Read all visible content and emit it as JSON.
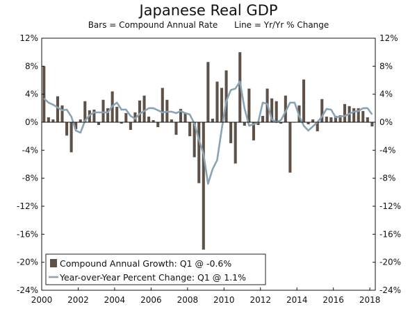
{
  "chart_data": {
    "type": "bar",
    "title": "Japanese Real GDP",
    "subtitle_left": "Bars = Compound Annual Rate",
    "subtitle_right": "Line = Yr/Yr % Change",
    "ylim": [
      -24,
      12
    ],
    "yticks": [
      "12%",
      "8%",
      "4%",
      "0%",
      "-4%",
      "-8%",
      "-12%",
      "-16%",
      "-20%",
      "-24%"
    ],
    "ytick_values": [
      12,
      8,
      4,
      0,
      -4,
      -8,
      -12,
      -16,
      -20,
      -24
    ],
    "xlim": [
      2000,
      2018.3
    ],
    "xticks": [
      "2000",
      "2002",
      "2004",
      "2006",
      "2008",
      "2010",
      "2012",
      "2014",
      "2016",
      "2018"
    ],
    "xtick_values": [
      2000,
      2002,
      2004,
      2006,
      2008,
      2010,
      2012,
      2014,
      2016,
      2018
    ],
    "colors": {
      "bars": "#5e5248",
      "line": "#8aa3b4",
      "axis": "#111111"
    },
    "series": [
      {
        "name": "Compound Annual Growth: Q1 @ -0.6%",
        "type": "bar",
        "x": [
          2000.0,
          2000.25,
          2000.5,
          2000.75,
          2001.0,
          2001.25,
          2001.5,
          2001.75,
          2002.0,
          2002.25,
          2002.5,
          2002.75,
          2003.0,
          2003.25,
          2003.5,
          2003.75,
          2004.0,
          2004.25,
          2004.5,
          2004.75,
          2005.0,
          2005.25,
          2005.5,
          2005.75,
          2006.0,
          2006.25,
          2006.5,
          2006.75,
          2007.0,
          2007.25,
          2007.5,
          2007.75,
          2008.0,
          2008.25,
          2008.5,
          2008.75,
          2009.0,
          2009.25,
          2009.5,
          2009.75,
          2010.0,
          2010.25,
          2010.5,
          2010.75,
          2011.0,
          2011.25,
          2011.5,
          2011.75,
          2012.0,
          2012.25,
          2012.5,
          2012.75,
          2013.0,
          2013.25,
          2013.5,
          2013.75,
          2014.0,
          2014.25,
          2014.5,
          2014.75,
          2015.0,
          2015.25,
          2015.5,
          2015.75,
          2016.0,
          2016.25,
          2016.5,
          2016.75,
          2017.0,
          2017.25,
          2017.5,
          2017.75,
          2018.0
        ],
        "values": [
          8.0,
          0.7,
          0.4,
          3.7,
          2.4,
          -1.9,
          -4.3,
          -1.0,
          0.4,
          3.0,
          1.7,
          1.8,
          -0.4,
          3.2,
          2.0,
          4.4,
          2.2,
          -0.2,
          1.3,
          -1.1,
          1.4,
          3.1,
          3.8,
          0.8,
          0.3,
          -0.7,
          4.9,
          3.2,
          0.4,
          -1.8,
          1.9,
          1.3,
          -2.0,
          -5.0,
          -8.7,
          -18.2,
          8.6,
          0.5,
          5.8,
          4.9,
          7.4,
          -3.0,
          -5.9,
          10.0,
          -0.5,
          4.8,
          -2.6,
          -0.4,
          0.9,
          4.8,
          3.4,
          3.0,
          -0.2,
          3.8,
          -7.2,
          0.0,
          2.4,
          6.1,
          -0.3,
          0.4,
          -1.3,
          3.3,
          0.8,
          0.7,
          0.9,
          1.0,
          2.6,
          2.3,
          2.0,
          2.0,
          1.6,
          0.7,
          -0.6
        ]
      },
      {
        "name": "Year-over-Year Percent Change: Q1 @ 1.1%",
        "type": "line",
        "x": [
          2000.0,
          2000.25,
          2000.5,
          2000.75,
          2001.0,
          2001.25,
          2001.5,
          2001.75,
          2002.0,
          2002.25,
          2002.5,
          2002.75,
          2003.0,
          2003.25,
          2003.5,
          2003.75,
          2004.0,
          2004.25,
          2004.5,
          2004.75,
          2005.0,
          2005.25,
          2005.5,
          2005.75,
          2006.0,
          2006.25,
          2006.5,
          2006.75,
          2007.0,
          2007.25,
          2007.5,
          2007.75,
          2008.0,
          2008.25,
          2008.5,
          2008.75,
          2009.0,
          2009.25,
          2009.5,
          2009.75,
          2010.0,
          2010.25,
          2010.5,
          2010.75,
          2011.0,
          2011.25,
          2011.5,
          2011.75,
          2012.0,
          2012.25,
          2012.5,
          2012.75,
          2013.0,
          2013.25,
          2013.5,
          2013.75,
          2014.0,
          2014.25,
          2014.5,
          2014.75,
          2015.0,
          2015.25,
          2015.5,
          2015.75,
          2016.0,
          2016.25,
          2016.5,
          2016.75,
          2017.0,
          2017.25,
          2017.5,
          2017.75,
          2018.0
        ],
        "values": [
          3.4,
          2.8,
          2.5,
          2.1,
          1.7,
          1.8,
          0.8,
          -1.2,
          -1.5,
          0.2,
          1.0,
          1.4,
          1.4,
          1.4,
          1.4,
          2.3,
          2.8,
          1.8,
          1.8,
          0.9,
          0.5,
          1.2,
          1.6,
          2.0,
          2.0,
          1.7,
          1.4,
          1.5,
          1.5,
          1.3,
          1.6,
          1.3,
          1.1,
          -0.2,
          -2.5,
          -4.5,
          -8.8,
          -6.7,
          -5.4,
          -1.0,
          3.0,
          4.6,
          4.8,
          5.8,
          2.0,
          -0.5,
          -0.3,
          0.0,
          2.8,
          2.6,
          0.4,
          0.0,
          0.3,
          1.5,
          2.8,
          2.8,
          0.9,
          -0.5,
          -1.2,
          -0.6,
          0.0,
          0.8,
          1.9,
          1.8,
          0.7,
          0.8,
          0.9,
          1.2,
          1.5,
          1.6,
          2.0,
          2.0,
          1.1
        ]
      }
    ],
    "legend_position": "bottom-left",
    "grid": false
  }
}
